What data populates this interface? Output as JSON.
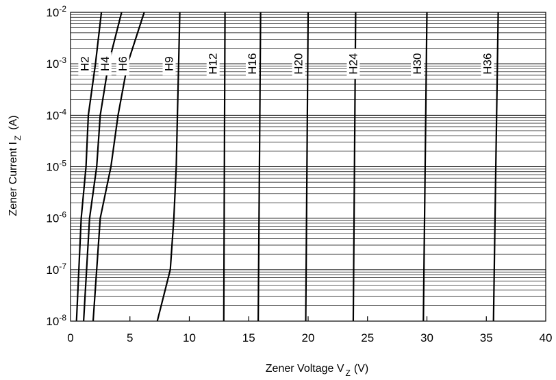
{
  "chart_data": {
    "type": "line",
    "title": "",
    "xlabel": {
      "main": "Zener Voltage V",
      "sub": "Z",
      "unit": "(V)"
    },
    "ylabel": {
      "main": "Zener Current I",
      "sub": "Z",
      "unit": "(A)"
    },
    "x_scale": "linear",
    "y_scale": "log",
    "xlim": [
      0,
      40
    ],
    "ylim": [
      1e-08,
      0.01
    ],
    "x_ticks": [
      {
        "value": 0,
        "label": "0"
      },
      {
        "value": 5,
        "label": "5"
      },
      {
        "value": 10,
        "label": "10"
      },
      {
        "value": 15,
        "label": "15"
      },
      {
        "value": 20,
        "label": "20"
      },
      {
        "value": 25,
        "label": "25"
      },
      {
        "value": 30,
        "label": "30"
      },
      {
        "value": 35,
        "label": "35"
      },
      {
        "value": 40,
        "label": "40"
      }
    ],
    "y_ticks": [
      {
        "value": 1e-08,
        "base": "10",
        "exp": "-8"
      },
      {
        "value": 1e-07,
        "base": "10",
        "exp": "-7"
      },
      {
        "value": 1e-06,
        "base": "10",
        "exp": "-6"
      },
      {
        "value": 1e-05,
        "base": "10",
        "exp": "-5"
      },
      {
        "value": 0.0001,
        "base": "10",
        "exp": "-4"
      },
      {
        "value": 0.001,
        "base": "10",
        "exp": "-3"
      },
      {
        "value": 0.01,
        "base": "10",
        "exp": "-2"
      }
    ],
    "grid": {
      "horizontal": true,
      "vertical": false,
      "minor_log": true
    },
    "label_current": 0.001,
    "series": [
      {
        "name": "H2",
        "label_x": 1.2,
        "points": [
          [
            0.5,
            1e-08
          ],
          [
            0.9,
            1e-06
          ],
          [
            1.3,
            1e-05
          ],
          [
            1.5,
            0.0001
          ],
          [
            2.1,
            0.001
          ],
          [
            2.6,
            0.01
          ]
        ]
      },
      {
        "name": "H4",
        "label_x": 2.9,
        "points": [
          [
            1.1,
            1e-08
          ],
          [
            1.6,
            1e-06
          ],
          [
            2.2,
            1e-05
          ],
          [
            2.5,
            0.0001
          ],
          [
            3.2,
            0.001
          ],
          [
            4.3,
            0.01
          ]
        ]
      },
      {
        "name": "H6",
        "label_x": 4.4,
        "points": [
          [
            1.9,
            1e-08
          ],
          [
            2.5,
            1e-06
          ],
          [
            3.4,
            1e-05
          ],
          [
            4.0,
            0.0001
          ],
          [
            4.8,
            0.001
          ],
          [
            6.2,
            0.01
          ]
        ]
      },
      {
        "name": "H9",
        "label_x": 8.3,
        "points": [
          [
            7.3,
            1e-08
          ],
          [
            8.4,
            1e-07
          ],
          [
            8.7,
            1e-06
          ],
          [
            8.9,
            1e-05
          ],
          [
            9.0,
            0.0001
          ],
          [
            9.1,
            0.001
          ],
          [
            9.2,
            0.01
          ]
        ]
      },
      {
        "name": "H12",
        "label_x": 12.0,
        "points": [
          [
            12.9,
            1e-08
          ],
          [
            12.95,
            1e-05
          ],
          [
            13.0,
            0.01
          ]
        ]
      },
      {
        "name": "H16",
        "label_x": 15.3,
        "points": [
          [
            15.8,
            1e-08
          ],
          [
            15.9,
            1e-05
          ],
          [
            16.0,
            0.01
          ]
        ]
      },
      {
        "name": "H20",
        "label_x": 19.2,
        "points": [
          [
            19.8,
            1e-08
          ],
          [
            19.9,
            1e-05
          ],
          [
            20.0,
            0.01
          ]
        ]
      },
      {
        "name": "H24",
        "label_x": 23.8,
        "points": [
          [
            23.8,
            1e-08
          ],
          [
            23.9,
            1e-05
          ],
          [
            24.0,
            0.01
          ]
        ]
      },
      {
        "name": "H30",
        "label_x": 29.2,
        "points": [
          [
            29.7,
            1e-08
          ],
          [
            29.85,
            1e-05
          ],
          [
            30.0,
            0.01
          ]
        ]
      },
      {
        "name": "H36",
        "label_x": 35.1,
        "points": [
          [
            35.6,
            1e-08
          ],
          [
            35.8,
            1e-05
          ],
          [
            36.0,
            0.01
          ]
        ]
      }
    ]
  }
}
